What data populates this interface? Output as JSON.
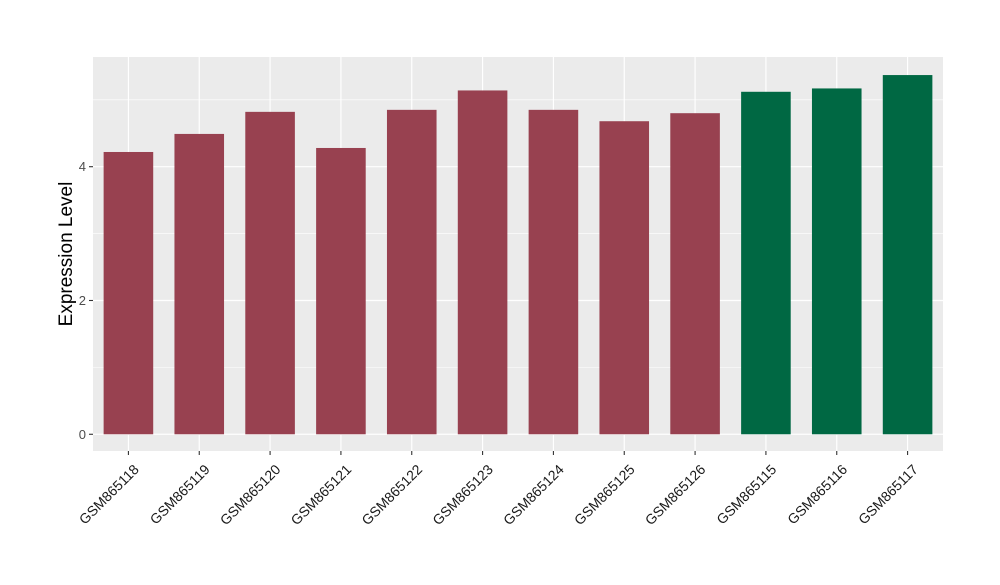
{
  "chart_data": {
    "type": "bar",
    "title": "",
    "xlabel": "",
    "ylabel": "Expression Level",
    "categories": [
      "GSM865118",
      "GSM865119",
      "GSM865120",
      "GSM865121",
      "GSM865122",
      "GSM865123",
      "GSM865124",
      "GSM865125",
      "GSM865126",
      "GSM865115",
      "GSM865116",
      "GSM865117"
    ],
    "values": [
      4.22,
      4.49,
      4.82,
      4.28,
      4.85,
      5.14,
      4.85,
      4.68,
      4.8,
      5.12,
      5.17,
      5.37
    ],
    "bar_colors": [
      "#984150",
      "#984150",
      "#984150",
      "#984150",
      "#984150",
      "#984150",
      "#984150",
      "#984150",
      "#984150",
      "#006843",
      "#006843",
      "#006843"
    ],
    "yticks": [
      0,
      2,
      4
    ],
    "ylim": [
      -0.25,
      5.64
    ],
    "grid": true,
    "legend": "none",
    "panel_background": "#ebebeb",
    "grid_color": "#ffffff"
  }
}
